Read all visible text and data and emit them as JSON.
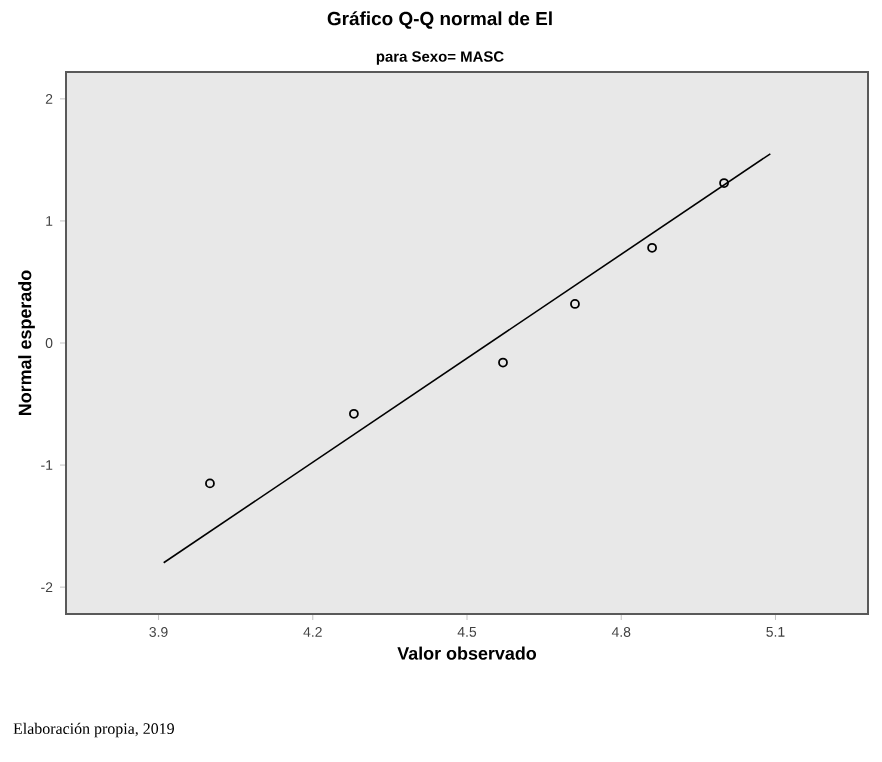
{
  "chart_data": {
    "type": "scatter",
    "title": "Gráfico Q-Q normal de El",
    "subtitle": "para Sexo= MASC",
    "xlabel": "Valor observado",
    "ylabel": "Normal esperado",
    "annotations": [
      "Elaboración propia, 2019"
    ],
    "series": [
      {
        "marker": "circle",
        "color": "#000000",
        "x": [
          4.0,
          4.28,
          4.57,
          4.71,
          4.86,
          5.0
        ],
        "values": [
          -1.15,
          -0.58,
          -0.16,
          0.32,
          0.78,
          1.31
        ]
      },
      {
        "type": "line",
        "marker": "none",
        "color": "#000000",
        "x": [
          3.91,
          5.09
        ],
        "values": [
          -1.8,
          1.55
        ]
      }
    ],
    "xlim": [
      3.72,
      5.28
    ],
    "ylim": [
      -2.22,
      2.22
    ],
    "xticks": [
      3.9,
      4.2,
      4.5,
      4.8,
      5.1
    ],
    "yticks": [
      -2,
      -1,
      0,
      1,
      2
    ],
    "grid": false
  }
}
